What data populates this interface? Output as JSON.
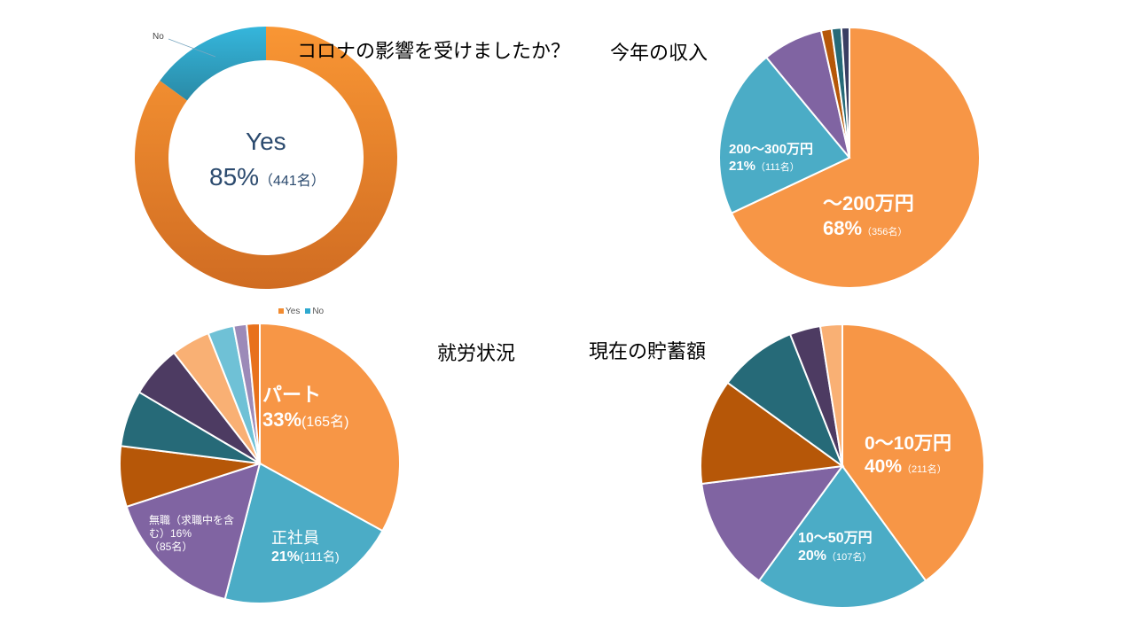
{
  "colors": {
    "orange": "#F79646",
    "blue": "#4BACC6",
    "purple": "#8064A2",
    "brown": "#B65708",
    "teal": "#266A78",
    "darkpurple": "#4D3B62",
    "lightorange": "#F9B074",
    "lightblue": "#6FC1D6",
    "lavender": "#9C8AB8",
    "darkorange": "#E8711C",
    "navy": "#3A3F63"
  },
  "chart_data": [
    {
      "type": "pie",
      "style": "donut",
      "title": "コロナの影響を受けましたか？",
      "categories": [
        "Yes",
        "No"
      ],
      "values": [
        85,
        15
      ],
      "counts": [
        441,
        null
      ],
      "colors": [
        "#F28B30",
        "#2FA9CF"
      ],
      "center_label": {
        "name": "Yes",
        "pct": "85%",
        "count": "（441名）"
      },
      "outer_label": "No",
      "legend": {
        "placement": "bottom",
        "entries": [
          "Yes",
          "No"
        ]
      }
    },
    {
      "type": "pie",
      "title": "今年の収入",
      "categories": [
        "～200万円",
        "200～300万円",
        "other-1",
        "other-2",
        "other-3",
        "other-4"
      ],
      "values": [
        68,
        21,
        7.5,
        1.3,
        1.2,
        1.0
      ],
      "colors": [
        "#F79646",
        "#4BACC6",
        "#8064A2",
        "#B65708",
        "#266A78",
        "#3A3F63"
      ],
      "labels": [
        {
          "name": "～200万円",
          "pct": "68%",
          "count": "（356名）"
        },
        {
          "name": "200～300万円",
          "pct": "21%",
          "count": "（111名）"
        }
      ]
    },
    {
      "type": "pie",
      "title": "就労状況",
      "categories": [
        "パート",
        "正社員",
        "無職（求職中を含む）",
        "other-1",
        "other-2",
        "other-3",
        "other-4",
        "other-5",
        "other-6",
        "other-7"
      ],
      "values": [
        33,
        21,
        16,
        7,
        6.5,
        6,
        4.5,
        3,
        1.5,
        1.5
      ],
      "colors": [
        "#F79646",
        "#4BACC6",
        "#8064A2",
        "#B65708",
        "#266A78",
        "#4D3B62",
        "#F9B074",
        "#6FC1D6",
        "#9C8AB8",
        "#E8711C"
      ],
      "labels": [
        {
          "name": "パート",
          "pct": "33%",
          "count": "(165名)"
        },
        {
          "name": "正社員",
          "pct": "21%",
          "count": "(111名)"
        },
        {
          "name": "無職（求職中を含",
          "name2": "む）16%",
          "count": "（85名）"
        }
      ]
    },
    {
      "type": "pie",
      "title": "現在の貯蓄額",
      "categories": [
        "0～10万円",
        "10～50万円",
        "other-1",
        "other-2",
        "other-3",
        "other-4",
        "other-5"
      ],
      "values": [
        40,
        20,
        13,
        12,
        9,
        3.5,
        2.5
      ],
      "colors": [
        "#F79646",
        "#4BACC6",
        "#8064A2",
        "#B65708",
        "#266A78",
        "#4D3B62",
        "#F9B074"
      ],
      "labels": [
        {
          "name": "0～10万円",
          "pct": "40%",
          "count": "（211名）"
        },
        {
          "name": "10～50万円",
          "pct": "20%",
          "count": "（107名）"
        }
      ]
    }
  ]
}
